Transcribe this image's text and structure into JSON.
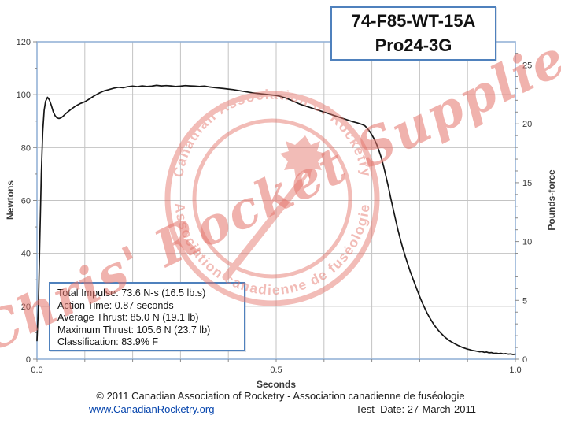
{
  "title_box": {
    "line1": "74-F85-WT-15A",
    "line2": "Pro24-3G"
  },
  "stats_box": {
    "lines": [
      "Total Impulse: 73.6 N-s (16.5 lb.s)",
      "Action Time: 0.87 seconds",
      "Average Thrust: 85.0 N (19.1 lb)",
      "Maximum Thrust: 105.6 N (23.7 lb)",
      "Classification: 83.9% F"
    ]
  },
  "watermark": {
    "main_text": "Chris' Rocket Supplies",
    "stamp_top": "Canadian Association of Rocketry",
    "stamp_bottom": "· Association canadienne de fuséologie ·",
    "emblem": "maple-leaf-rocket"
  },
  "footer": {
    "copyright": "© 2011 Canadian Association of Rocketry - Association canadienne de fuséologie",
    "link": "www.CanadianRocketry.org",
    "test_date": "Test  Date: 27-March-2011"
  },
  "colors": {
    "accent_blue": "#4f81bd",
    "plot_border_blue": "#95b3d7",
    "gridline": "#c3c3c3",
    "curve": "#161616",
    "watermark_red": "#e4746b",
    "link_blue": "#0645ad"
  },
  "chart_data": {
    "type": "line",
    "title": "74-F85-WT-15A Pro24-3G thrust curve",
    "xlabel": "Seconds",
    "ylabel_left": "Newtons",
    "ylabel_right": "Pounds-force",
    "xlim": [
      0,
      1.0
    ],
    "ylim_left": [
      0,
      120
    ],
    "right_axis_unit_newtons_per_lbf": 4.4482,
    "x_major_tick_labels": [
      "0.0",
      "0.5",
      "1.0"
    ],
    "x_tick_step": 0.1,
    "grid": true,
    "y_left_ticks": [
      0,
      20,
      40,
      60,
      80,
      100,
      120
    ],
    "y_left_minor_step": 10,
    "y_right_ticks": [
      0,
      5,
      10,
      15,
      20,
      25
    ],
    "y_right_minor_step": 1,
    "series": [
      {
        "name": "Thrust (N)",
        "points": [
          [
            0,
            7
          ],
          [
            0.003,
            20
          ],
          [
            0.006,
            45
          ],
          [
            0.009,
            70
          ],
          [
            0.012,
            86
          ],
          [
            0.015,
            94
          ],
          [
            0.018,
            97.5
          ],
          [
            0.022,
            99
          ],
          [
            0.026,
            98
          ],
          [
            0.03,
            96
          ],
          [
            0.034,
            93.5
          ],
          [
            0.038,
            92
          ],
          [
            0.042,
            91.2
          ],
          [
            0.046,
            91
          ],
          [
            0.05,
            91.2
          ],
          [
            0.055,
            91.9
          ],
          [
            0.06,
            92.8
          ],
          [
            0.07,
            94.3
          ],
          [
            0.08,
            95.6
          ],
          [
            0.09,
            96.6
          ],
          [
            0.1,
            97.3
          ],
          [
            0.11,
            98.4
          ],
          [
            0.12,
            99.6
          ],
          [
            0.13,
            100.6
          ],
          [
            0.14,
            101.4
          ],
          [
            0.15,
            101.9
          ],
          [
            0.16,
            102.4
          ],
          [
            0.17,
            102.8
          ],
          [
            0.18,
            102.6
          ],
          [
            0.19,
            103.0
          ],
          [
            0.2,
            103.2
          ],
          [
            0.21,
            103.0
          ],
          [
            0.22,
            103.3
          ],
          [
            0.23,
            103.1
          ],
          [
            0.24,
            103.2
          ],
          [
            0.25,
            103.5
          ],
          [
            0.26,
            103.3
          ],
          [
            0.27,
            103.4
          ],
          [
            0.28,
            103.3
          ],
          [
            0.29,
            103.1
          ],
          [
            0.3,
            103.2
          ],
          [
            0.31,
            103.4
          ],
          [
            0.32,
            103.3
          ],
          [
            0.33,
            103.2
          ],
          [
            0.34,
            103.1
          ],
          [
            0.35,
            103.2
          ],
          [
            0.36,
            102.9
          ],
          [
            0.37,
            102.7
          ],
          [
            0.38,
            102.5
          ],
          [
            0.39,
            102.3
          ],
          [
            0.4,
            102.1
          ],
          [
            0.41,
            101.9
          ],
          [
            0.42,
            101.6
          ],
          [
            0.43,
            101.3
          ],
          [
            0.44,
            101.0
          ],
          [
            0.45,
            100.7
          ],
          [
            0.46,
            100.5
          ],
          [
            0.47,
            100.3
          ],
          [
            0.48,
            100.1
          ],
          [
            0.49,
            99.9
          ],
          [
            0.5,
            99.7
          ],
          [
            0.51,
            99.3
          ],
          [
            0.52,
            98.7
          ],
          [
            0.53,
            98.0
          ],
          [
            0.54,
            97.2
          ],
          [
            0.55,
            96.4
          ],
          [
            0.56,
            95.8
          ],
          [
            0.57,
            95.2
          ],
          [
            0.58,
            94.6
          ],
          [
            0.59,
            94.0
          ],
          [
            0.6,
            93.4
          ],
          [
            0.61,
            92.8
          ],
          [
            0.62,
            92.2
          ],
          [
            0.63,
            91.6
          ],
          [
            0.64,
            91.0
          ],
          [
            0.65,
            90.4
          ],
          [
            0.66,
            89.8
          ],
          [
            0.67,
            89.3
          ],
          [
            0.675,
            89.0
          ],
          [
            0.68,
            88.7
          ],
          [
            0.685,
            88.3
          ],
          [
            0.69,
            87.4
          ],
          [
            0.695,
            86.2
          ],
          [
            0.7,
            84.8
          ],
          [
            0.705,
            83.2
          ],
          [
            0.71,
            81.2
          ],
          [
            0.715,
            78.8
          ],
          [
            0.72,
            76.0
          ],
          [
            0.725,
            72.6
          ],
          [
            0.73,
            68.8
          ],
          [
            0.735,
            64.8
          ],
          [
            0.74,
            60.5
          ],
          [
            0.745,
            56.4
          ],
          [
            0.75,
            52.4
          ],
          [
            0.755,
            48.6
          ],
          [
            0.76,
            45.0
          ],
          [
            0.765,
            41.8
          ],
          [
            0.77,
            38.8
          ],
          [
            0.775,
            36.0
          ],
          [
            0.78,
            33.3
          ],
          [
            0.785,
            30.8
          ],
          [
            0.79,
            28.4
          ],
          [
            0.795,
            26.0
          ],
          [
            0.8,
            23.7
          ],
          [
            0.805,
            21.5
          ],
          [
            0.81,
            19.5
          ],
          [
            0.815,
            17.6
          ],
          [
            0.82,
            15.9
          ],
          [
            0.825,
            14.4
          ],
          [
            0.83,
            13.0
          ],
          [
            0.835,
            11.8
          ],
          [
            0.84,
            10.7
          ],
          [
            0.845,
            9.7
          ],
          [
            0.85,
            8.8
          ],
          [
            0.855,
            8.0
          ],
          [
            0.86,
            7.3
          ],
          [
            0.865,
            6.7
          ],
          [
            0.87,
            6.2
          ],
          [
            0.875,
            5.7
          ],
          [
            0.88,
            5.2
          ],
          [
            0.885,
            4.8
          ],
          [
            0.89,
            4.4
          ],
          [
            0.895,
            4.1
          ],
          [
            0.9,
            3.8
          ],
          [
            0.905,
            3.6
          ],
          [
            0.91,
            3.3
          ],
          [
            0.915,
            3.2
          ],
          [
            0.92,
            3.0
          ],
          [
            0.925,
            2.8
          ],
          [
            0.93,
            2.9
          ],
          [
            0.935,
            2.6
          ],
          [
            0.94,
            2.7
          ],
          [
            0.945,
            2.4
          ],
          [
            0.95,
            2.5
          ],
          [
            0.955,
            2.2
          ],
          [
            0.96,
            2.3
          ],
          [
            0.965,
            2.1
          ],
          [
            0.97,
            2.2
          ],
          [
            0.975,
            2.0
          ],
          [
            0.98,
            2.1
          ],
          [
            0.985,
            1.9
          ],
          [
            0.99,
            2.0
          ],
          [
            0.995,
            1.8
          ],
          [
            1.0,
            1.9
          ]
        ]
      }
    ]
  }
}
